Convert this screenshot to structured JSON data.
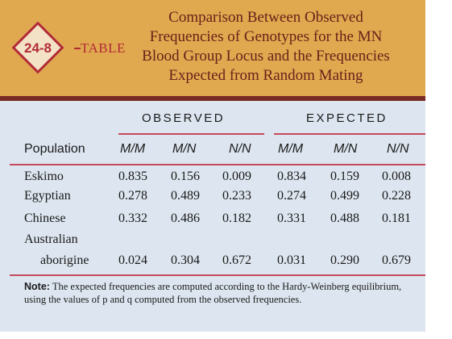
{
  "badge": {
    "number": "24-8",
    "label": "TABLE"
  },
  "title_lines": [
    "Comparison Between Observed",
    "Frequencies of Genotypes for the MN",
    "Blood Group Locus and the Frequencies",
    "Expected from Random Mating"
  ],
  "groups": {
    "observed": "OBSERVED",
    "expected": "EXPECTED"
  },
  "columns": {
    "population": "Population",
    "genotypes": [
      "M/M",
      "M/N",
      "N/N",
      "M/M",
      "M/N",
      "N/N"
    ]
  },
  "rows": [
    {
      "population": "Eskimo",
      "values": [
        "0.835",
        "0.156",
        "0.009",
        "0.834",
        "0.159",
        "0.008"
      ]
    },
    {
      "population": "Egyptian",
      "values": [
        "0.278",
        "0.489",
        "0.233",
        "0.274",
        "0.499",
        "0.228"
      ]
    },
    {
      "population": "Chinese",
      "values": [
        "0.332",
        "0.486",
        "0.182",
        "0.331",
        "0.488",
        "0.181"
      ]
    },
    {
      "population": "Australian",
      "values": [
        "",
        "",
        "",
        "",
        "",
        ""
      ]
    },
    {
      "population": "aborigine",
      "values": [
        "0.024",
        "0.304",
        "0.672",
        "0.031",
        "0.290",
        "0.679"
      ]
    }
  ],
  "note": {
    "label": "Note:",
    "text": "The expected frequencies are computed according to the Hardy-Weinberg equilibrium, using the values of p and q computed from the observed frequencies."
  }
}
